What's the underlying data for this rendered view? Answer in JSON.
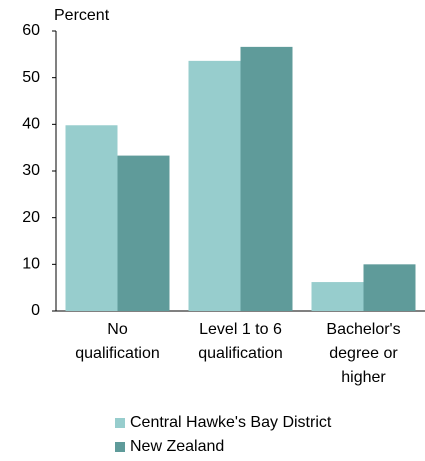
{
  "chart_data": {
    "type": "bar",
    "y_label": "Percent",
    "categories": [
      "No qualification",
      "Level 1 to 6 qualification",
      "Bachelor's degree or higher"
    ],
    "series": [
      {
        "name": "Central Hawke's Bay District",
        "color": "#97cdcd",
        "values": [
          39.8,
          53.6,
          6.2
        ]
      },
      {
        "name": "New Zealand",
        "color": "#5f9b9a",
        "values": [
          33.3,
          56.6,
          10.0
        ]
      }
    ],
    "ylim": [
      0,
      60
    ],
    "yticks": [
      0,
      10,
      20,
      30,
      40,
      50,
      60
    ],
    "grid": false,
    "legend": "bottom"
  }
}
